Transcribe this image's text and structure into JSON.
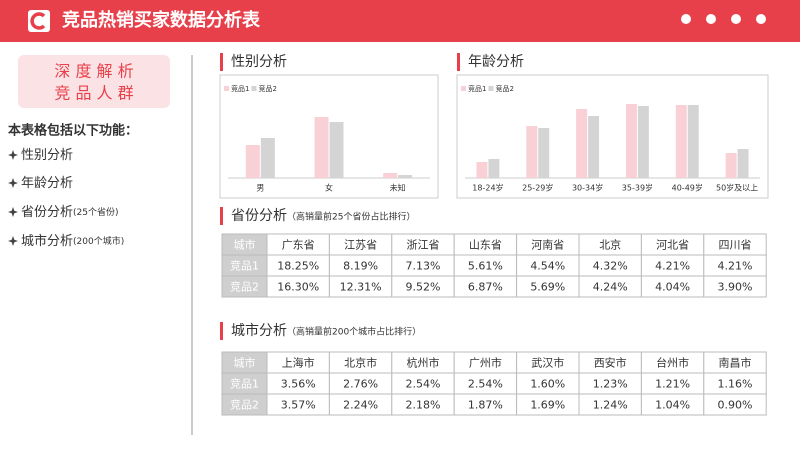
{
  "header": {
    "title": "竞品热销买家数据分析表"
  },
  "sidebar": {
    "badge": [
      "深 度 解 析",
      "竞 品 人 群"
    ],
    "intro": "本表格包括以下功能：",
    "features": [
      {
        "text": "性别分析"
      },
      {
        "text": "年龄分析"
      },
      {
        "text": "省份分析",
        "note": "(25个省份)"
      },
      {
        "text": "城市分析",
        "note": "(200个城市)"
      }
    ]
  },
  "gender": {
    "title": "性别分析",
    "chart": {
      "type": "bar",
      "categories": [
        "男",
        "女",
        "未知"
      ],
      "series": [
        {
          "name": "竞品1",
          "color": "#f9d0d5",
          "values": [
            33,
            61,
            5
          ]
        },
        {
          "name": "竞品2",
          "color": "#d4d4d4",
          "values": [
            40,
            56,
            3
          ]
        }
      ],
      "ylim": [
        0,
        80
      ]
    }
  },
  "age": {
    "title": "年龄分析",
    "chart": {
      "type": "bar",
      "categories": [
        "18-24岁",
        "25-29岁",
        "30-34岁",
        "35-39岁",
        "40-49岁",
        "50岁及以上"
      ],
      "series": [
        {
          "name": "竞品1",
          "color": "#f9d0d5",
          "values": [
            16,
            52,
            69,
            74,
            73,
            25
          ]
        },
        {
          "name": "竞品2",
          "color": "#d4d4d4",
          "values": [
            19,
            50,
            62,
            72,
            73,
            29
          ]
        }
      ],
      "ylim": [
        0,
        80
      ]
    }
  },
  "province": {
    "title": "省份分析",
    "subtitle": "（高销量前25个省份占比排行）",
    "table": {
      "header": [
        "城市",
        "广东省",
        "江苏省",
        "浙江省",
        "山东省",
        "河南省",
        "北京",
        "河北省",
        "四川省"
      ],
      "rows": [
        [
          "竞品1",
          "18.25%",
          "8.19%",
          "7.13%",
          "5.61%",
          "4.54%",
          "4.32%",
          "4.21%",
          "4.21%"
        ],
        [
          "竞品2",
          "16.30%",
          "12.31%",
          "9.52%",
          "6.87%",
          "5.69%",
          "4.24%",
          "4.04%",
          "3.90%"
        ]
      ]
    }
  },
  "city": {
    "title": "城市分析",
    "subtitle": "（高销量前200个城市占比排行）",
    "table": {
      "header": [
        "城市",
        "上海市",
        "北京市",
        "杭州市",
        "广州市",
        "武汉市",
        "西安市",
        "台州市",
        "南昌市"
      ],
      "rows": [
        [
          "竞品1",
          "3.56%",
          "2.76%",
          "2.54%",
          "2.54%",
          "1.60%",
          "1.23%",
          "1.21%",
          "1.16%"
        ],
        [
          "竞品2",
          "3.57%",
          "2.24%",
          "2.18%",
          "1.87%",
          "1.69%",
          "1.24%",
          "1.04%",
          "0.90%"
        ]
      ]
    }
  }
}
